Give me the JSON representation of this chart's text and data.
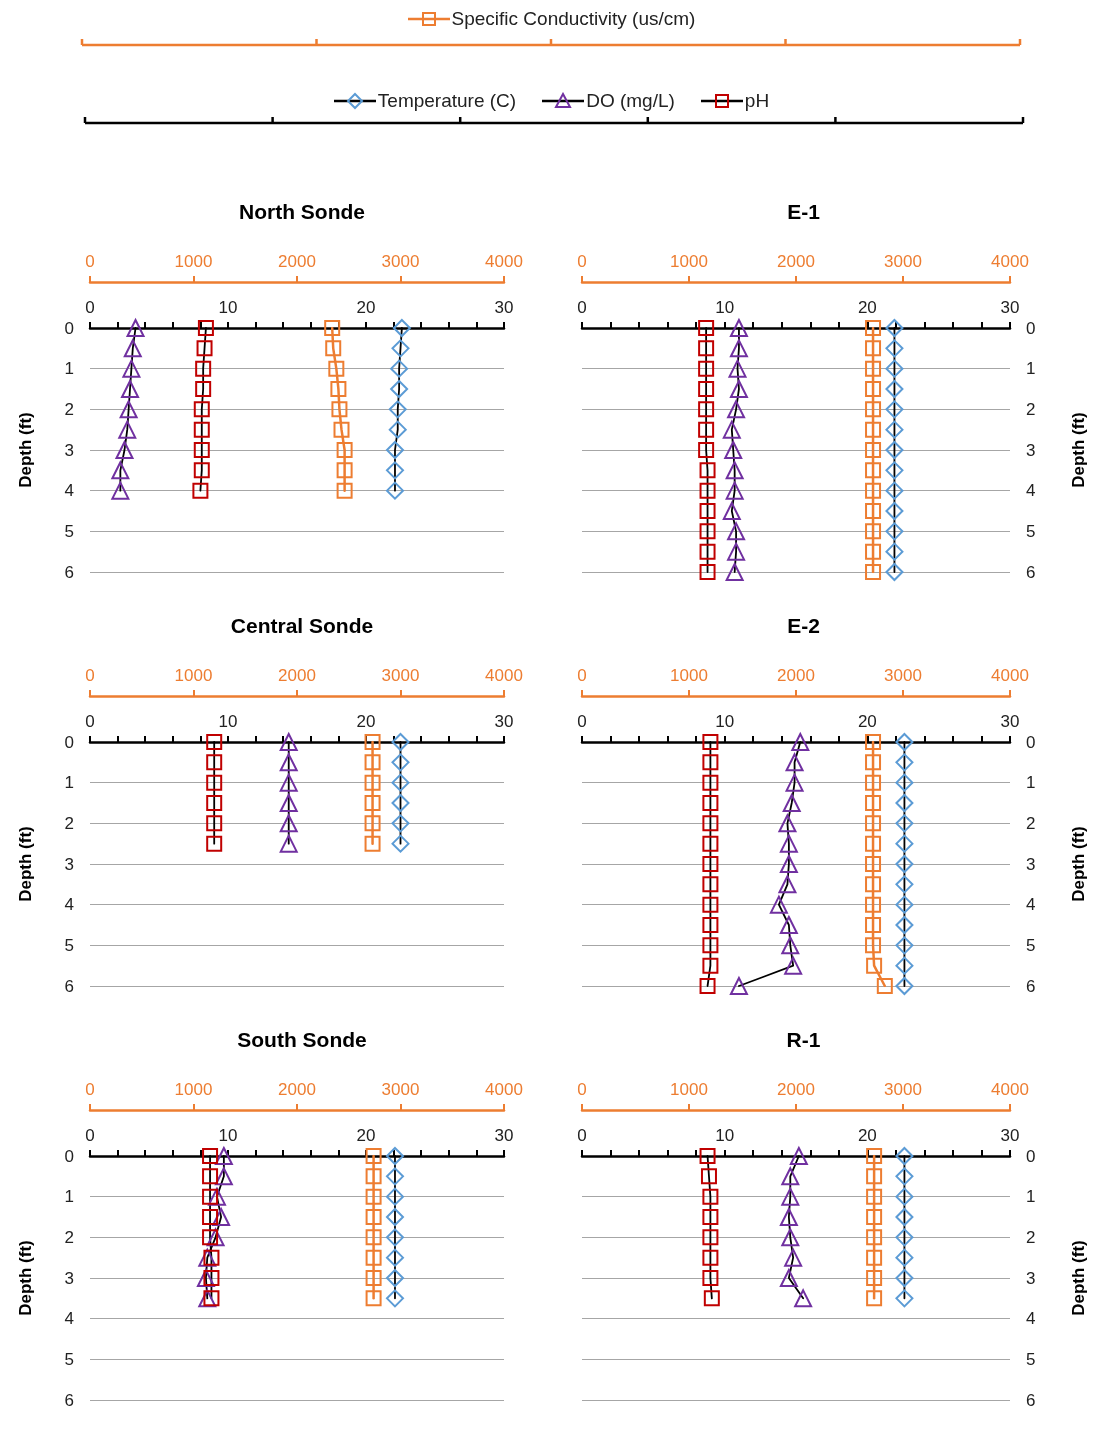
{
  "chart_data": [
    {
      "type": "line",
      "title": "North Sonde",
      "ylabel": "Depth (ft)",
      "ylim": [
        6,
        0
      ],
      "yticks": [
        0,
        1,
        2,
        3,
        4,
        5,
        6
      ],
      "xlim": [
        0,
        30
      ],
      "xticks": [
        0,
        {
          "value": 2,
          "label": null
        },
        {
          "value": 4,
          "label": null
        },
        {
          "value": 6,
          "label": null
        },
        {
          "value": 8,
          "label": null
        },
        10,
        {
          "value": 12,
          "label": null
        },
        {
          "value": 14,
          "label": null
        },
        {
          "value": 16,
          "label": null
        },
        {
          "value": 18,
          "label": null
        },
        20,
        {
          "value": 22,
          "label": null
        },
        {
          "value": 24,
          "label": null
        },
        {
          "value": 26,
          "label": null
        },
        {
          "value": 28,
          "label": null
        },
        30
      ],
      "x2lim": [
        0,
        4000
      ],
      "x2ticks": [
        0,
        1000,
        2000,
        3000,
        4000
      ],
      "grid": "y",
      "legend": "top",
      "series": [
        {
          "name": "Specific Conductivity (us/cm)",
          "color": "#ed7d31",
          "marker": "square",
          "axis": "x2",
          "x": [
            2340,
            2350,
            2380,
            2400,
            2410,
            2430,
            2460,
            2460,
            2460
          ],
          "values": [
            0,
            0.5,
            1,
            1.5,
            2,
            2.5,
            3,
            3.5,
            4
          ]
        },
        {
          "name": "Temperature (C)",
          "color": "#5b9bd5",
          "marker": "diamond",
          "x": [
            22.6,
            22.5,
            22.4,
            22.4,
            22.3,
            22.3,
            22.1,
            22.1,
            22.1
          ],
          "values": [
            0,
            0.5,
            1,
            1.5,
            2,
            2.5,
            3,
            3.5,
            4
          ]
        },
        {
          "name": "DO (mg/L)",
          "color": "#7030a0",
          "marker": "triangle",
          "x": [
            3.3,
            3.1,
            3.0,
            2.9,
            2.8,
            2.7,
            2.5,
            2.2,
            2.2
          ],
          "values": [
            0,
            0.5,
            1,
            1.5,
            2,
            2.5,
            3,
            3.5,
            4
          ]
        },
        {
          "name": "pH",
          "color": "#c00000",
          "marker": "square",
          "x": [
            8.4,
            8.3,
            8.2,
            8.2,
            8.1,
            8.1,
            8.1,
            8.1,
            8.0
          ],
          "values": [
            0,
            0.5,
            1,
            1.5,
            2,
            2.5,
            3,
            3.5,
            4
          ]
        }
      ]
    },
    {
      "type": "line",
      "title": "E-1",
      "ylabel": "Depth (ft)",
      "ylim": [
        6,
        0
      ],
      "yticks": [
        0,
        1,
        2,
        3,
        4,
        5,
        6
      ],
      "xlim": [
        0,
        30
      ],
      "xticks": [
        0,
        {
          "value": 2,
          "label": null
        },
        {
          "value": 4,
          "label": null
        },
        {
          "value": 6,
          "label": null
        },
        {
          "value": 8,
          "label": null
        },
        10,
        {
          "value": 12,
          "label": null
        },
        {
          "value": 14,
          "label": null
        },
        {
          "value": 16,
          "label": null
        },
        {
          "value": 18,
          "label": null
        },
        20,
        {
          "value": 22,
          "label": null
        },
        {
          "value": 24,
          "label": null
        },
        {
          "value": 26,
          "label": null
        },
        {
          "value": 28,
          "label": null
        },
        30
      ],
      "x2lim": [
        0,
        4000
      ],
      "x2ticks": [
        0,
        1000,
        2000,
        3000,
        4000
      ],
      "grid": "y",
      "series": [
        {
          "color": "#ed7d31",
          "marker": "square",
          "axis": "x2",
          "x": [
            2720,
            2720,
            2720,
            2720,
            2720,
            2720,
            2720,
            2720,
            2720,
            2720,
            2720,
            2720,
            2720
          ],
          "values": [
            0,
            0.5,
            1,
            1.5,
            2,
            2.5,
            3,
            3.5,
            4,
            4.5,
            5,
            5.5,
            6
          ]
        },
        {
          "color": "#5b9bd5",
          "marker": "diamond",
          "x": [
            21.9,
            21.9,
            21.9,
            21.9,
            21.9,
            21.9,
            21.9,
            21.9,
            21.9,
            21.9,
            21.9,
            21.9,
            21.9
          ],
          "values": [
            0,
            0.5,
            1,
            1.5,
            2,
            2.5,
            3,
            3.5,
            4,
            4.5,
            5,
            5.5,
            6
          ]
        },
        {
          "color": "#7030a0",
          "marker": "triangle",
          "x": [
            11.0,
            11.0,
            10.9,
            11.0,
            10.8,
            10.5,
            10.6,
            10.7,
            10.7,
            10.5,
            10.8,
            10.8,
            10.7
          ],
          "values": [
            0,
            0.5,
            1,
            1.5,
            2,
            2.5,
            3,
            3.5,
            4,
            4.5,
            5,
            5.5,
            6
          ]
        },
        {
          "color": "#c00000",
          "marker": "square",
          "x": [
            8.7,
            8.7,
            8.7,
            8.7,
            8.7,
            8.7,
            8.7,
            8.8,
            8.8,
            8.8,
            8.8,
            8.8,
            8.8
          ],
          "values": [
            0,
            0.5,
            1,
            1.5,
            2,
            2.5,
            3,
            3.5,
            4,
            4.5,
            5,
            5.5,
            6
          ]
        }
      ]
    },
    {
      "type": "line",
      "title": "Central Sonde",
      "ylabel": "Depth (ft)",
      "ylim": [
        6,
        0
      ],
      "yticks": [
        0,
        1,
        2,
        3,
        4,
        5,
        6
      ],
      "xlim": [
        0,
        30
      ],
      "xticks": [
        0,
        {
          "value": 2,
          "label": null
        },
        {
          "value": 4,
          "label": null
        },
        {
          "value": 6,
          "label": null
        },
        {
          "value": 8,
          "label": null
        },
        10,
        {
          "value": 12,
          "label": null
        },
        {
          "value": 14,
          "label": null
        },
        {
          "value": 16,
          "label": null
        },
        {
          "value": 18,
          "label": null
        },
        20,
        {
          "value": 22,
          "label": null
        },
        {
          "value": 24,
          "label": null
        },
        {
          "value": 26,
          "label": null
        },
        {
          "value": 28,
          "label": null
        },
        30
      ],
      "x2lim": [
        0,
        4000
      ],
      "x2ticks": [
        0,
        1000,
        2000,
        3000,
        4000
      ],
      "grid": "y",
      "series": [
        {
          "color": "#ed7d31",
          "marker": "square",
          "axis": "x2",
          "x": [
            2730,
            2730,
            2730,
            2730,
            2730,
            2730
          ],
          "values": [
            0,
            0.5,
            1,
            1.5,
            2,
            2.5
          ]
        },
        {
          "color": "#5b9bd5",
          "marker": "diamond",
          "x": [
            22.5,
            22.5,
            22.5,
            22.5,
            22.5,
            22.5
          ],
          "values": [
            0,
            0.5,
            1,
            1.5,
            2,
            2.5
          ]
        },
        {
          "color": "#7030a0",
          "marker": "triangle",
          "x": [
            14.4,
            14.4,
            14.4,
            14.4,
            14.4,
            14.4
          ],
          "values": [
            0,
            0.5,
            1,
            1.5,
            2,
            2.5
          ]
        },
        {
          "color": "#c00000",
          "marker": "square",
          "x": [
            9.0,
            9.0,
            9.0,
            9.0,
            9.0,
            9.0
          ],
          "values": [
            0,
            0.5,
            1,
            1.5,
            2,
            2.5
          ]
        }
      ]
    },
    {
      "type": "line",
      "title": "E-2",
      "ylabel": "Depth (ft)",
      "ylim": [
        6,
        0
      ],
      "yticks": [
        0,
        1,
        2,
        3,
        4,
        5,
        6
      ],
      "xlim": [
        0,
        30
      ],
      "xticks": [
        0,
        {
          "value": 2,
          "label": null
        },
        {
          "value": 4,
          "label": null
        },
        {
          "value": 6,
          "label": null
        },
        {
          "value": 8,
          "label": null
        },
        10,
        {
          "value": 12,
          "label": null
        },
        {
          "value": 14,
          "label": null
        },
        {
          "value": 16,
          "label": null
        },
        {
          "value": 18,
          "label": null
        },
        20,
        {
          "value": 22,
          "label": null
        },
        {
          "value": 24,
          "label": null
        },
        {
          "value": 26,
          "label": null
        },
        {
          "value": 28,
          "label": null
        },
        30
      ],
      "x2lim": [
        0,
        4000
      ],
      "x2ticks": [
        0,
        1000,
        2000,
        3000,
        4000
      ],
      "grid": "y",
      "series": [
        {
          "color": "#ed7d31",
          "marker": "square",
          "axis": "x2",
          "x": [
            2720,
            2720,
            2720,
            2720,
            2720,
            2720,
            2720,
            2720,
            2720,
            2720,
            2720,
            2730,
            2830
          ],
          "values": [
            0,
            0.5,
            1,
            1.5,
            2,
            2.5,
            3,
            3.5,
            4,
            4.5,
            5,
            5.5,
            6
          ]
        },
        {
          "color": "#5b9bd5",
          "marker": "diamond",
          "x": [
            22.6,
            22.6,
            22.6,
            22.6,
            22.6,
            22.6,
            22.6,
            22.6,
            22.6,
            22.6,
            22.6,
            22.6,
            22.6
          ],
          "values": [
            0,
            0.5,
            1,
            1.5,
            2,
            2.5,
            3,
            3.5,
            4,
            4.5,
            5,
            5.5,
            6
          ]
        },
        {
          "color": "#7030a0",
          "marker": "triangle",
          "x": [
            15.3,
            14.9,
            14.9,
            14.7,
            14.4,
            14.5,
            14.5,
            14.4,
            13.8,
            14.5,
            14.6,
            14.8,
            11.0
          ],
          "values": [
            0,
            0.5,
            1,
            1.5,
            2,
            2.5,
            3,
            3.5,
            4,
            4.5,
            5,
            5.5,
            6
          ]
        },
        {
          "color": "#c00000",
          "marker": "square",
          "x": [
            9.0,
            9.0,
            9.0,
            9.0,
            9.0,
            9.0,
            9.0,
            9.0,
            9.0,
            9.0,
            9.0,
            9.0,
            8.8
          ],
          "values": [
            0,
            0.5,
            1,
            1.5,
            2,
            2.5,
            3,
            3.5,
            4,
            4.5,
            5,
            5.5,
            6
          ]
        }
      ]
    },
    {
      "type": "line",
      "title": "South Sonde",
      "ylabel": "Depth (ft)",
      "ylim": [
        6,
        0
      ],
      "yticks": [
        0,
        1,
        2,
        3,
        4,
        5,
        6
      ],
      "xlim": [
        0,
        30
      ],
      "xticks": [
        0,
        {
          "value": 2,
          "label": null
        },
        {
          "value": 4,
          "label": null
        },
        {
          "value": 6,
          "label": null
        },
        {
          "value": 8,
          "label": null
        },
        10,
        {
          "value": 12,
          "label": null
        },
        {
          "value": 14,
          "label": null
        },
        {
          "value": 16,
          "label": null
        },
        {
          "value": 18,
          "label": null
        },
        20,
        {
          "value": 22,
          "label": null
        },
        {
          "value": 24,
          "label": null
        },
        {
          "value": 26,
          "label": null
        },
        {
          "value": 28,
          "label": null
        },
        30
      ],
      "x2lim": [
        0,
        4000
      ],
      "x2ticks": [
        0,
        1000,
        2000,
        3000,
        4000
      ],
      "grid": "y",
      "series": [
        {
          "color": "#ed7d31",
          "marker": "square",
          "axis": "x2",
          "x": [
            2740,
            2740,
            2740,
            2740,
            2740,
            2740,
            2740,
            2740
          ],
          "values": [
            0,
            0.5,
            1,
            1.5,
            2,
            2.5,
            3,
            3.5
          ]
        },
        {
          "color": "#5b9bd5",
          "marker": "diamond",
          "x": [
            22.1,
            22.1,
            22.1,
            22.1,
            22.1,
            22.1,
            22.1,
            22.1
          ],
          "values": [
            0,
            0.5,
            1,
            1.5,
            2,
            2.5,
            3,
            3.5
          ]
        },
        {
          "color": "#7030a0",
          "marker": "triangle",
          "x": [
            9.7,
            9.7,
            9.2,
            9.5,
            9.1,
            8.5,
            8.4,
            8.5
          ],
          "values": [
            0,
            0.5,
            1,
            1.5,
            2,
            2.5,
            3,
            3.5
          ]
        },
        {
          "color": "#c00000",
          "marker": "square",
          "x": [
            8.7,
            8.7,
            8.7,
            8.7,
            8.7,
            8.8,
            8.8,
            8.8
          ],
          "values": [
            0,
            0.5,
            1,
            1.5,
            2,
            2.5,
            3,
            3.5
          ]
        }
      ]
    },
    {
      "type": "line",
      "title": "R-1",
      "ylabel": "Depth (ft)",
      "ylim": [
        6,
        0
      ],
      "yticks": [
        0,
        1,
        2,
        3,
        4,
        5,
        6
      ],
      "xlim": [
        0,
        30
      ],
      "xticks": [
        0,
        {
          "value": 2,
          "label": null
        },
        {
          "value": 4,
          "label": null
        },
        {
          "value": 6,
          "label": null
        },
        {
          "value": 8,
          "label": null
        },
        10,
        {
          "value": 12,
          "label": null
        },
        {
          "value": 14,
          "label": null
        },
        {
          "value": 16,
          "label": null
        },
        {
          "value": 18,
          "label": null
        },
        20,
        {
          "value": 22,
          "label": null
        },
        {
          "value": 24,
          "label": null
        },
        {
          "value": 26,
          "label": null
        },
        {
          "value": 28,
          "label": null
        },
        30
      ],
      "x2lim": [
        0,
        4000
      ],
      "x2ticks": [
        0,
        1000,
        2000,
        3000,
        4000
      ],
      "grid": "y",
      "series": [
        {
          "color": "#ed7d31",
          "marker": "square",
          "axis": "x2",
          "x": [
            2730,
            2730,
            2730,
            2730,
            2730,
            2730,
            2730,
            2730
          ],
          "values": [
            0,
            0.5,
            1,
            1.5,
            2,
            2.5,
            3,
            3.5
          ]
        },
        {
          "color": "#5b9bd5",
          "marker": "diamond",
          "x": [
            22.6,
            22.6,
            22.6,
            22.6,
            22.6,
            22.6,
            22.6,
            22.6
          ],
          "values": [
            0,
            0.5,
            1,
            1.5,
            2,
            2.5,
            3,
            3.5
          ]
        },
        {
          "color": "#7030a0",
          "marker": "triangle",
          "x": [
            15.2,
            14.6,
            14.6,
            14.5,
            14.6,
            14.8,
            14.5,
            15.5
          ],
          "values": [
            0,
            0.5,
            1,
            1.5,
            2,
            2.5,
            3,
            3.5
          ]
        },
        {
          "color": "#c00000",
          "marker": "square",
          "x": [
            8.8,
            8.9,
            9.0,
            9.0,
            9.0,
            9.0,
            9.0,
            9.1
          ],
          "values": [
            0,
            0.5,
            1,
            1.5,
            2,
            2.5,
            3,
            3.5
          ]
        }
      ]
    }
  ]
}
